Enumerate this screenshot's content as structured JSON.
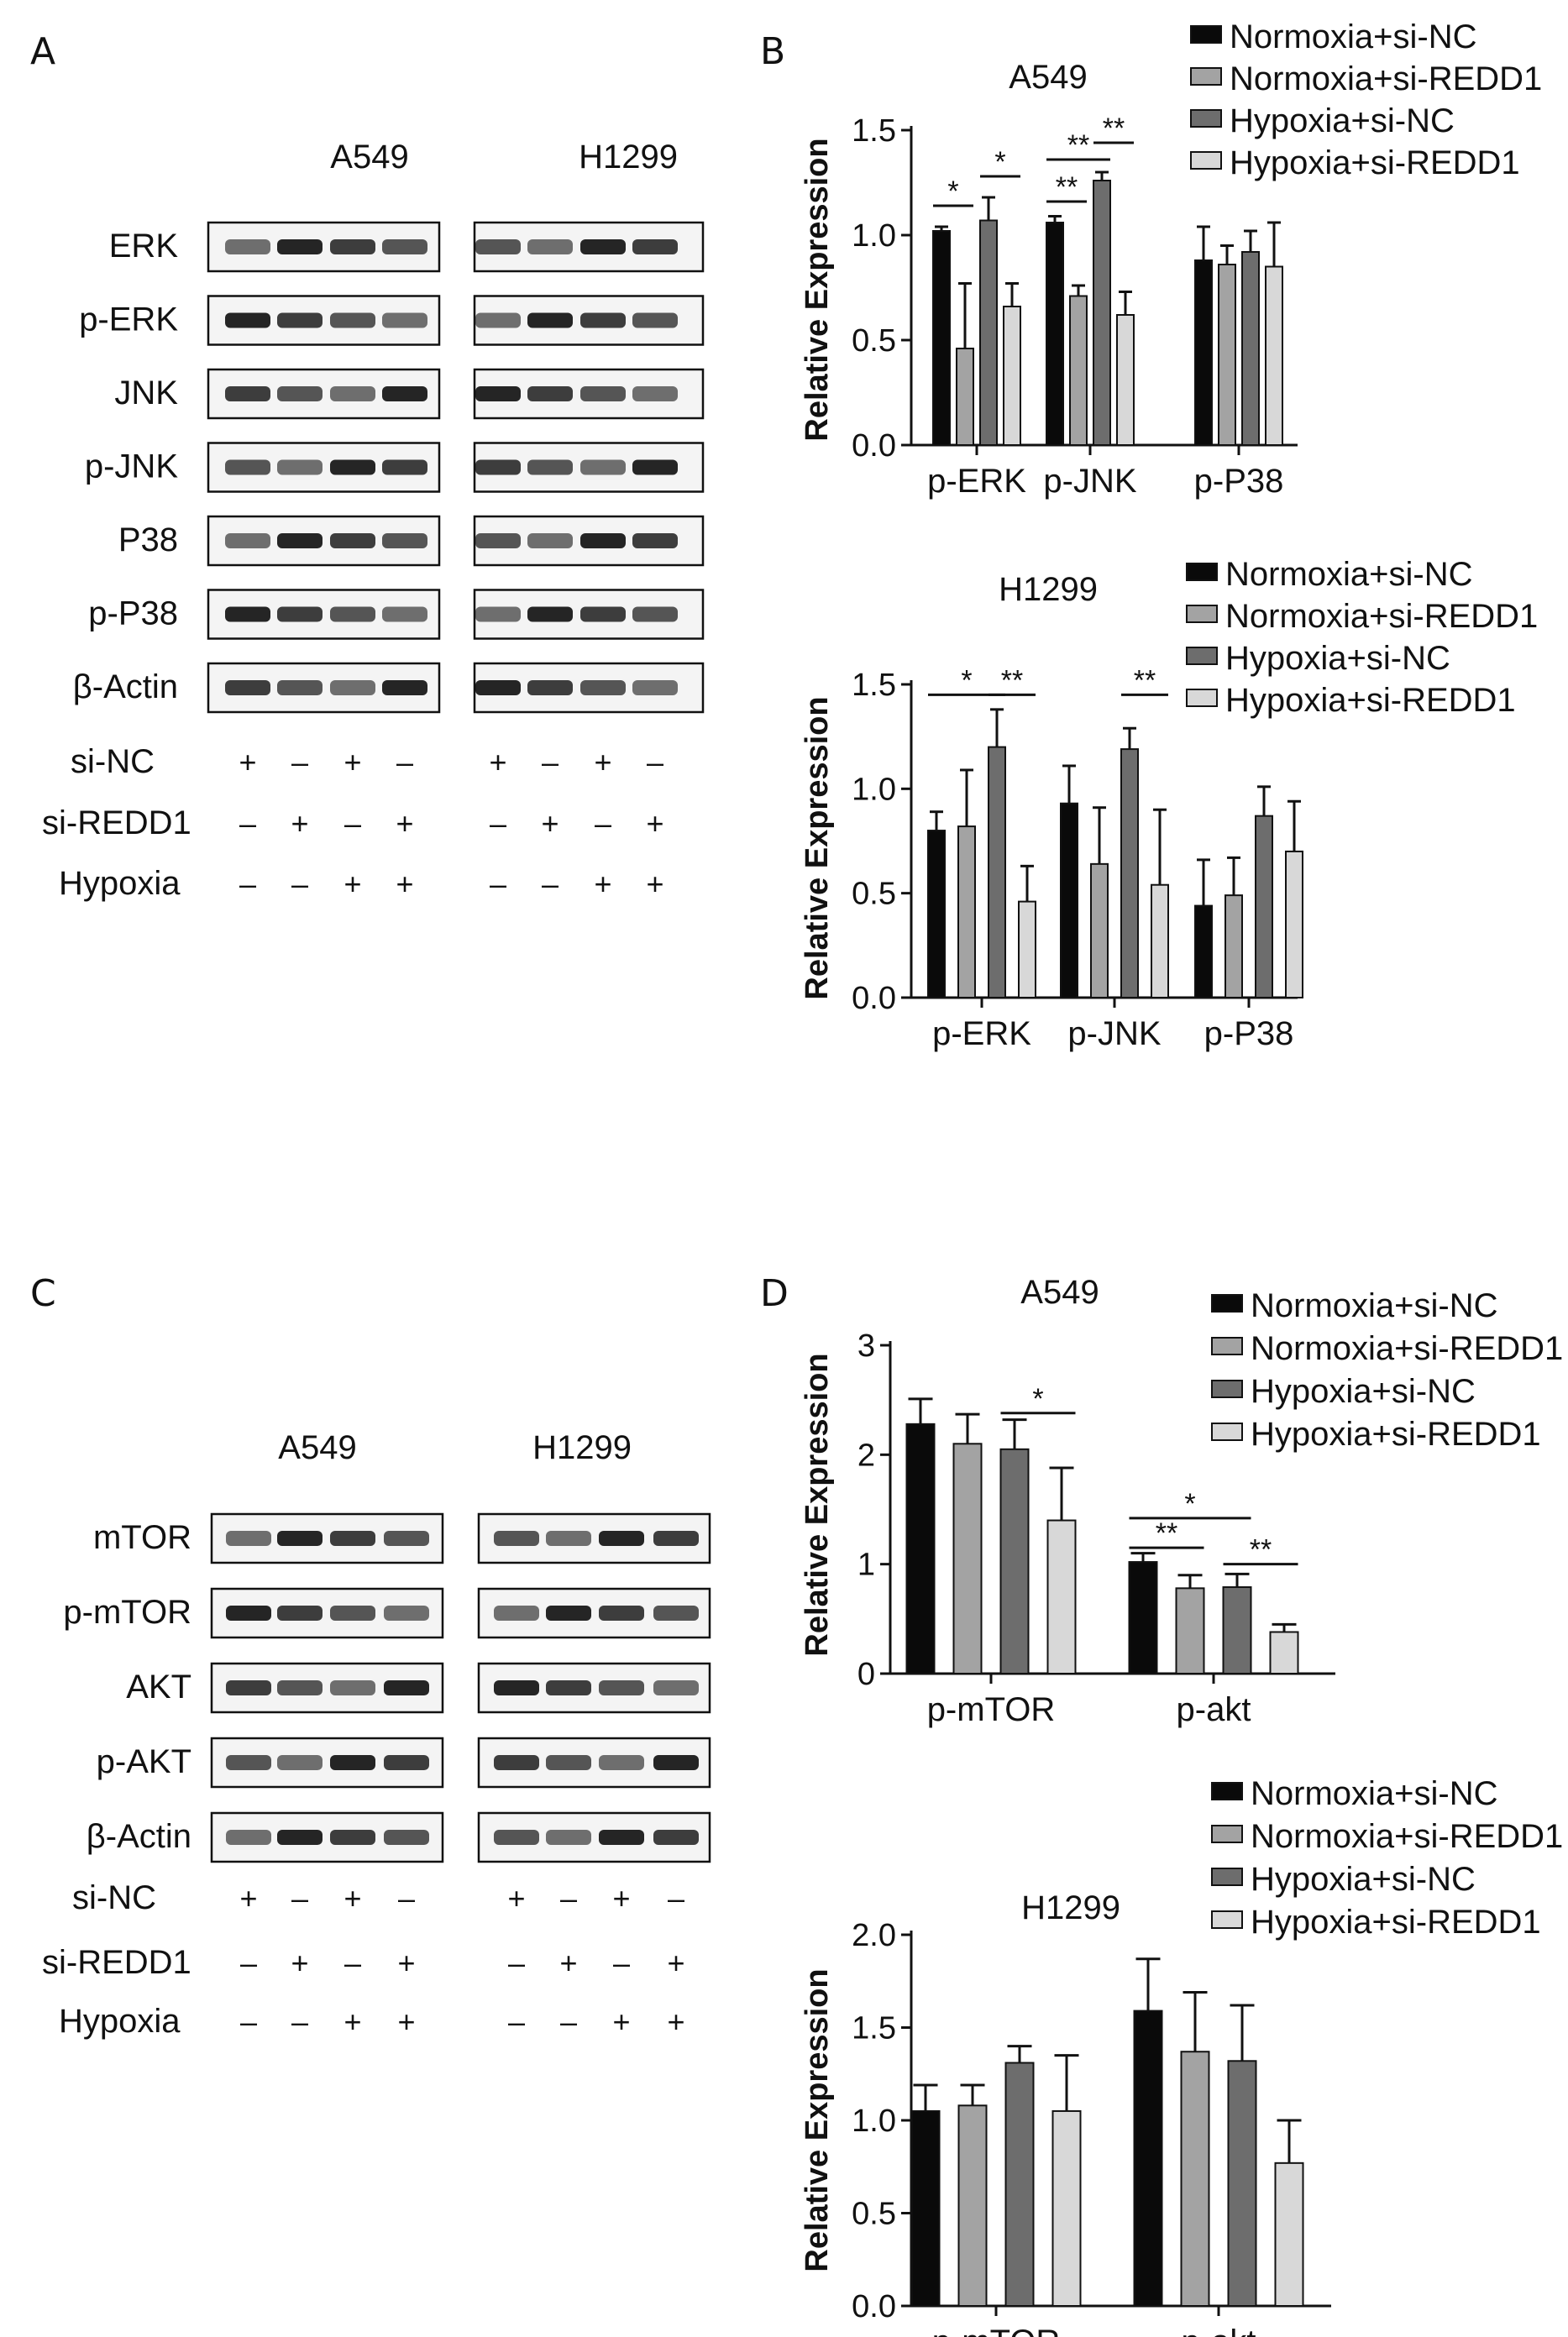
{
  "panels": {
    "a": "A",
    "b": "B",
    "c": "C",
    "d": "D"
  },
  "legend_labels": [
    "Normoxia+si-NC",
    "Normoxia+si-REDD1",
    "Hypoxia+si-NC",
    "Hypoxia+si-REDD1"
  ],
  "series_colors": [
    "#0a0a0a",
    "#a3a3a3",
    "#6d6d6d",
    "#d8d8d8"
  ],
  "blots": [
    {
      "cells": [
        "A549",
        "H1299"
      ],
      "rows": [
        "ERK",
        "p-ERK",
        "JNK",
        "p-JNK",
        "P38",
        "p-P38",
        "β-Actin"
      ],
      "treatments": [
        {
          "label": "si-NC",
          "signs": [
            "+",
            "–",
            "+",
            "–"
          ]
        },
        {
          "label": "si-REDD1",
          "signs": [
            "–",
            "+",
            "–",
            "+"
          ]
        },
        {
          "label": "Hypoxia",
          "signs": [
            "–",
            "–",
            "+",
            "+"
          ]
        }
      ]
    },
    {
      "cells": [
        "A549",
        "H1299"
      ],
      "rows": [
        "mTOR",
        "p-mTOR",
        "AKT",
        "p-AKT",
        "β-Actin"
      ],
      "treatments": [
        {
          "label": "si-NC",
          "signs": [
            "+",
            "–",
            "+",
            "–"
          ]
        },
        {
          "label": "si-REDD1",
          "signs": [
            "–",
            "+",
            "–",
            "+"
          ]
        },
        {
          "label": "Hypoxia",
          "signs": [
            "–",
            "–",
            "+",
            "+"
          ]
        }
      ]
    }
  ],
  "chart_data": [
    {
      "type": "bar",
      "title": "A549",
      "ylabel": "Relative Expression",
      "categories": [
        "p-ERK",
        "p-JNK",
        "p-P38"
      ],
      "yticks": [
        "0.0",
        "0.5",
        "1.0",
        "1.5"
      ],
      "ylim": [
        0,
        1.5
      ],
      "legend": "top-right",
      "series": [
        {
          "name": "Normoxia+si-NC",
          "values": [
            1.02,
            1.06,
            0.88
          ],
          "errors": [
            0.02,
            0.03,
            0.16
          ]
        },
        {
          "name": "Normoxia+si-REDD1",
          "values": [
            0.46,
            0.71,
            0.86
          ],
          "errors": [
            0.31,
            0.05,
            0.09
          ]
        },
        {
          "name": "Hypoxia+si-NC",
          "values": [
            1.07,
            1.26,
            0.92
          ],
          "errors": [
            0.11,
            0.04,
            0.1
          ]
        },
        {
          "name": "Hypoxia+si-REDD1",
          "values": [
            0.66,
            0.62,
            0.85
          ],
          "errors": [
            0.11,
            0.11,
            0.21
          ]
        }
      ],
      "significance": [
        {
          "category": 0,
          "from": 0,
          "to": 1,
          "label": "*",
          "y": 1.14
        },
        {
          "category": 0,
          "from": 2,
          "to": 3,
          "label": "*",
          "y": 1.28
        },
        {
          "category": 1,
          "from": 0,
          "to": 1,
          "label": "**",
          "y": 1.16
        },
        {
          "category": 1,
          "from": 0,
          "to": 2,
          "label": "**",
          "y": 1.36
        },
        {
          "category": 1,
          "from": 2,
          "to": 3,
          "label": "**",
          "y": 1.44
        }
      ]
    },
    {
      "type": "bar",
      "title": "H1299",
      "ylabel": "Relative Expression",
      "categories": [
        "p-ERK",
        "p-JNK",
        "p-P38"
      ],
      "yticks": [
        "0.0",
        "0.5",
        "1.0",
        "1.5"
      ],
      "ylim": [
        0,
        1.5
      ],
      "legend": "top-right",
      "series": [
        {
          "name": "Normoxia+si-NC",
          "values": [
            0.8,
            0.93,
            0.44
          ],
          "errors": [
            0.09,
            0.18,
            0.22
          ]
        },
        {
          "name": "Normoxia+si-REDD1",
          "values": [
            0.82,
            0.64,
            0.49
          ],
          "errors": [
            0.27,
            0.27,
            0.18
          ]
        },
        {
          "name": "Hypoxia+si-NC",
          "values": [
            1.2,
            1.19,
            0.87
          ],
          "errors": [
            0.18,
            0.1,
            0.14
          ]
        },
        {
          "name": "Hypoxia+si-REDD1",
          "values": [
            0.46,
            0.54,
            0.7
          ],
          "errors": [
            0.17,
            0.36,
            0.24
          ]
        }
      ],
      "significance": [
        {
          "category": 0,
          "from": 0,
          "to": 2,
          "label": "*",
          "y": 1.45
        },
        {
          "category": 0,
          "from": 2,
          "to": 3,
          "label": "**",
          "y": 1.45
        },
        {
          "category": 1,
          "from": 2,
          "to": 3,
          "label": "**",
          "y": 1.45
        }
      ]
    },
    {
      "type": "bar",
      "title": "A549",
      "ylabel": "Relative Expression",
      "categories": [
        "p-mTOR",
        "p-akt"
      ],
      "yticks": [
        "0",
        "1",
        "2",
        "3"
      ],
      "ylim": [
        0,
        3
      ],
      "legend": "top-right",
      "series": [
        {
          "name": "Normoxia+si-NC",
          "values": [
            2.28,
            1.02
          ],
          "errors": [
            0.23,
            0.08
          ]
        },
        {
          "name": "Normoxia+si-REDD1",
          "values": [
            2.1,
            0.78
          ],
          "errors": [
            0.27,
            0.12
          ]
        },
        {
          "name": "Hypoxia+si-NC",
          "values": [
            2.05,
            0.79
          ],
          "errors": [
            0.27,
            0.12
          ]
        },
        {
          "name": "Hypoxia+si-REDD1",
          "values": [
            1.4,
            0.38
          ],
          "errors": [
            0.48,
            0.07
          ]
        }
      ],
      "significance": [
        {
          "category": 0,
          "from": 2,
          "to": 3,
          "label": "*",
          "y": 2.38
        },
        {
          "category": 1,
          "from": 0,
          "to": 1,
          "label": "**",
          "y": 1.15
        },
        {
          "category": 1,
          "from": 0,
          "to": 2,
          "label": "*",
          "y": 1.42
        },
        {
          "category": 1,
          "from": 2,
          "to": 3,
          "label": "**",
          "y": 1.0
        }
      ]
    },
    {
      "type": "bar",
      "title": "H1299",
      "ylabel": "Relative Expression",
      "categories": [
        "p-mTOR",
        "p-akt"
      ],
      "yticks": [
        "0.0",
        "0.5",
        "1.0",
        "1.5",
        "2.0"
      ],
      "ylim": [
        0,
        2
      ],
      "legend": "top-right",
      "series": [
        {
          "name": "Normoxia+si-NC",
          "values": [
            1.05,
            1.59
          ],
          "errors": [
            0.14,
            0.28
          ]
        },
        {
          "name": "Normoxia+si-REDD1",
          "values": [
            1.08,
            1.37
          ],
          "errors": [
            0.11,
            0.32
          ]
        },
        {
          "name": "Hypoxia+si-NC",
          "values": [
            1.31,
            1.32
          ],
          "errors": [
            0.09,
            0.3
          ]
        },
        {
          "name": "Hypoxia+si-REDD1",
          "values": [
            1.05,
            0.77
          ],
          "errors": [
            0.3,
            0.23
          ]
        }
      ],
      "significance": []
    }
  ]
}
